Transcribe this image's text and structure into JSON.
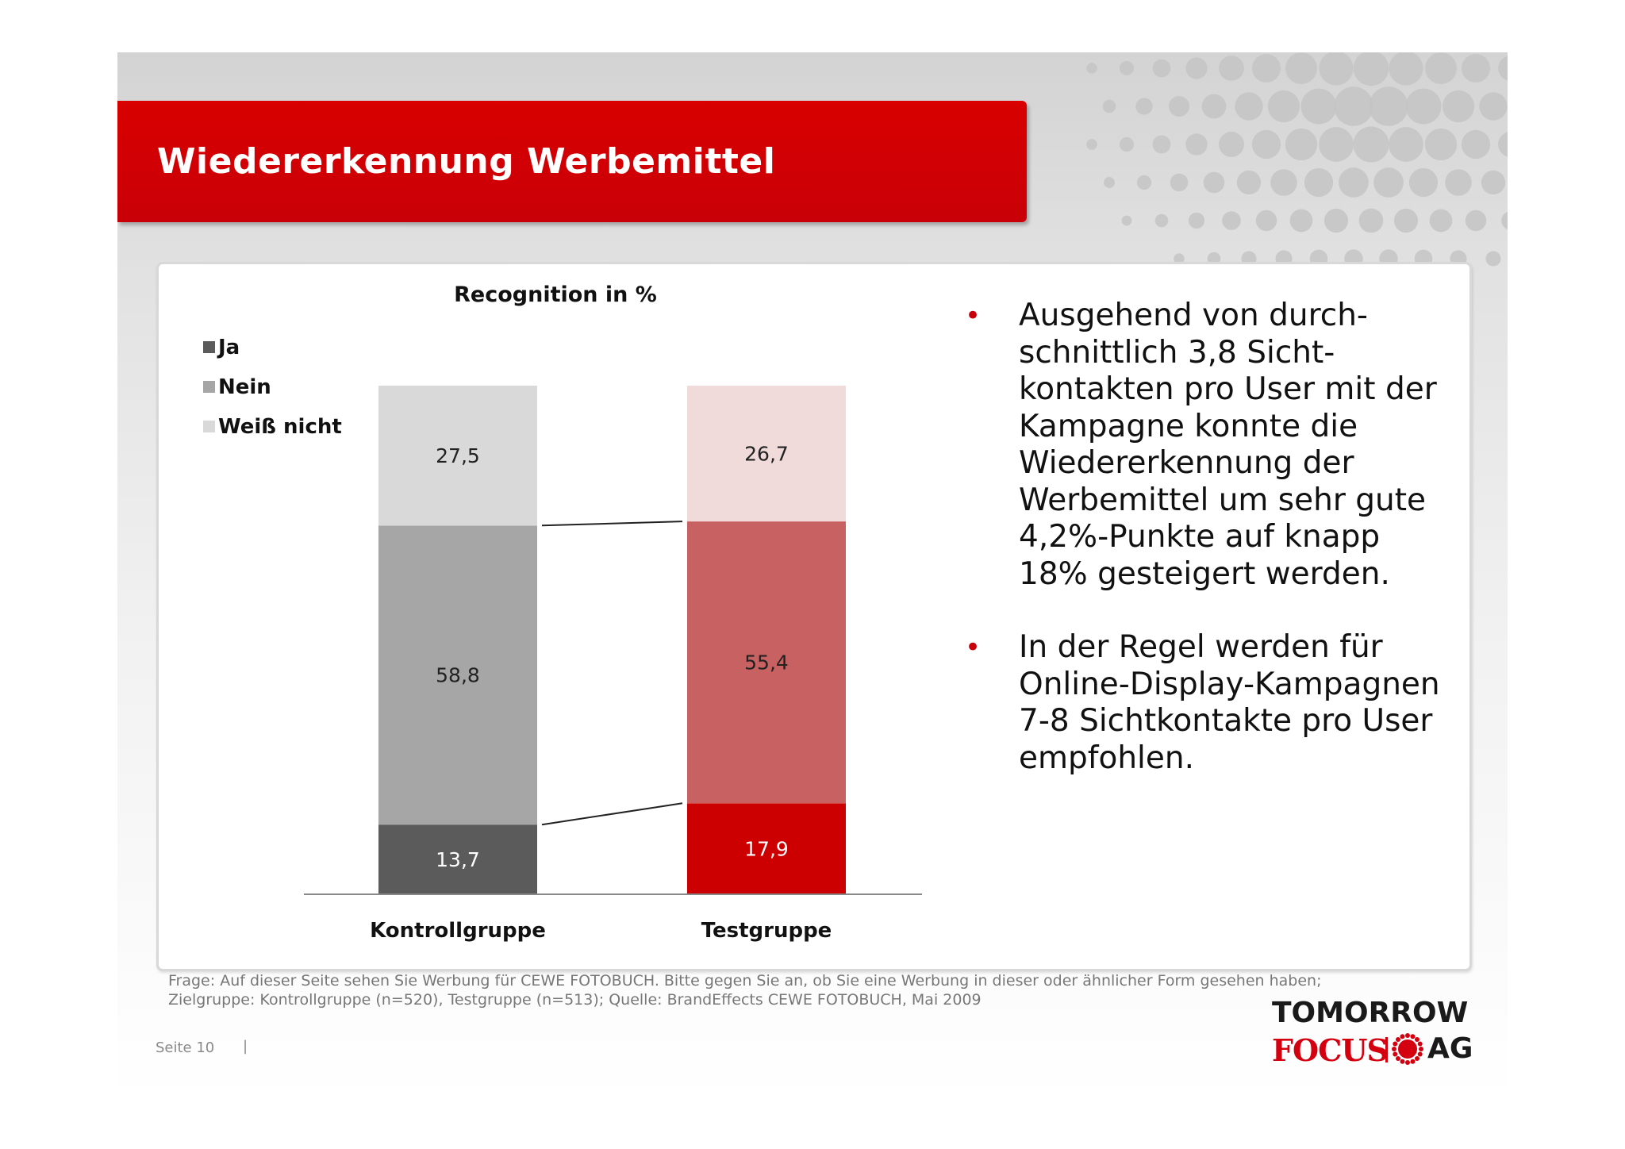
{
  "title": "Wiedererkennung Werbemittel",
  "chart_data": {
    "type": "bar",
    "stacked": true,
    "title": "Recognition in %",
    "categories": [
      "Kontrollgruppe",
      "Testgruppe"
    ],
    "series": [
      {
        "name": "Ja",
        "values": [
          13.7,
          17.9
        ],
        "labels": [
          "13,7",
          "17,9"
        ]
      },
      {
        "name": "Nein",
        "values": [
          58.8,
          55.4
        ],
        "labels": [
          "58,8",
          "55,4"
        ]
      },
      {
        "name": "Weiß nicht",
        "values": [
          27.5,
          26.7
        ],
        "labels": [
          "27,5",
          "26,7"
        ]
      }
    ],
    "colors": {
      "Kontrollgruppe": [
        "#5b5b5b",
        "#a6a6a6",
        "#d9d9d9"
      ],
      "Testgruppe": [
        "#cc0000",
        "#c86262",
        "#f0dada"
      ]
    },
    "legend_colors": [
      "#5b5b5b",
      "#a6a6a6",
      "#d9d9d9"
    ],
    "label_colors": {
      "Kontrollgruppe": [
        "#ffffff",
        "#222222",
        "#222222"
      ],
      "Testgruppe": [
        "#ffffff",
        "#222222",
        "#222222"
      ]
    },
    "ylim": [
      0,
      100
    ],
    "legend_position": "top-left",
    "connector_lines": true
  },
  "bullets": [
    "Ausgehend von durch-\nschnittlich 3,8 Sicht-\nkontakten pro User mit der Kampagne konnte die Wiedererkennung der Werbemittel um sehr gute 4,2%-Punkte auf knapp 18% gesteigert werden.",
    "In der Regel werden für Online-Display-Kampagnen 7-8 Sichtkontakte pro User empfohlen."
  ],
  "bullet_symbol": "•",
  "footnote": "Frage: Auf dieser Seite sehen Sie Werbung für CEWE FOTOBUCH. Bitte gegen Sie an, ob Sie eine Werbung in dieser oder ähnlicher Form gesehen haben; Zielgruppe: Kontrollgruppe (n=520), Testgruppe (n=513); Quelle: BrandEffects CEWE FOTOBUCH, Mai 2009",
  "page_label": "Seite 10",
  "page_separator": "|",
  "logo": {
    "line1": "TOMORROW",
    "focus": "FOCUS",
    "ag": "AG"
  }
}
